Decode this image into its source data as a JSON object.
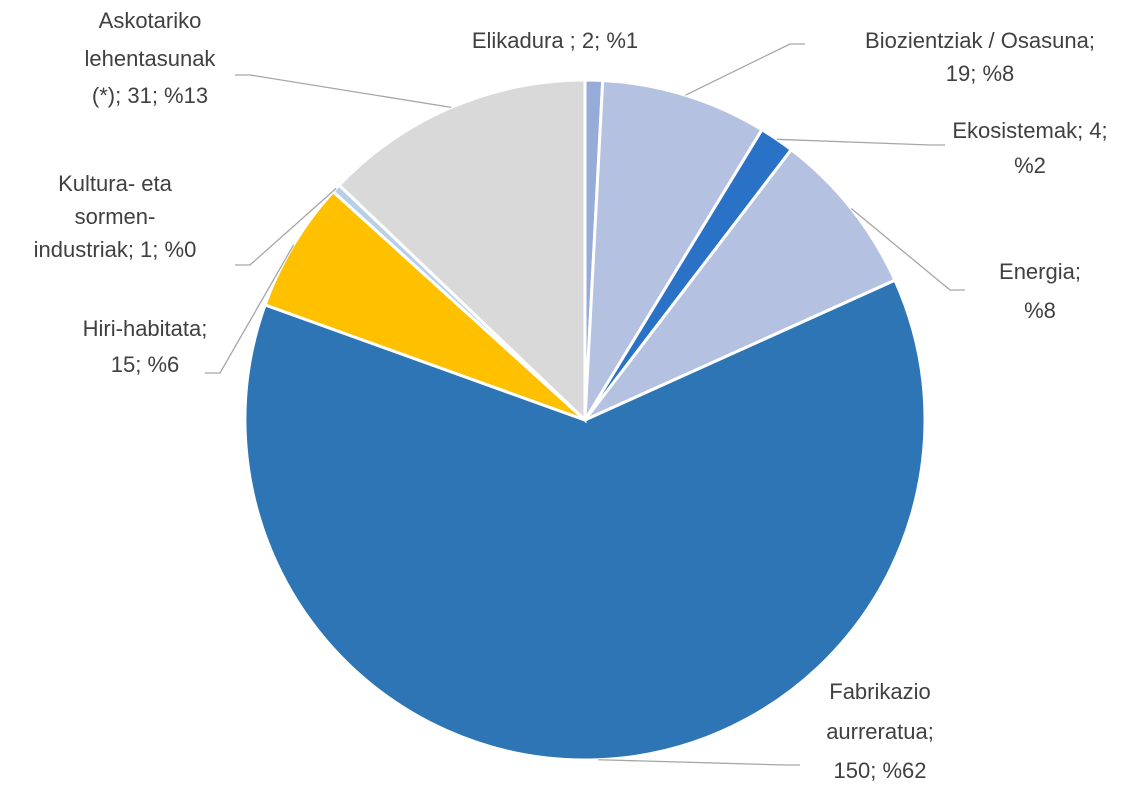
{
  "chart_data": {
    "type": "pie",
    "values": [
      2,
      19,
      4,
      19,
      150,
      15,
      1,
      31
    ],
    "value_labels": [
      [
        "Elikadura ; 2; %1"
      ],
      [
        "Biozientziak / Osasuna;",
        "19; %8"
      ],
      [
        "Ekosistemak; 4;",
        "%2"
      ],
      [
        "Energia;",
        "%8"
      ],
      [
        "Fabrikazio",
        "aurreratua;",
        "150; %62"
      ],
      [
        "Hiri-habitata;",
        "15; %6"
      ],
      [
        "Kultura- eta",
        "sormen-",
        "industriak; 1; %0"
      ],
      [
        "Askotariko",
        "lehentasunak",
        "(*); 31; %13"
      ]
    ],
    "colors": [
      "#97abd8",
      "#b4c1e1",
      "#2a72c5",
      "#b4c1e1",
      "#2e75b6",
      "#ffc000",
      "#b8cfea",
      "#d9d9d9"
    ]
  }
}
